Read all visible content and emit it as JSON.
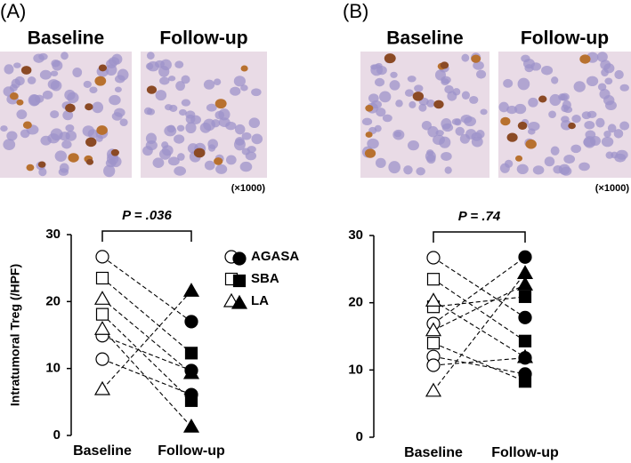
{
  "chart_data": [
    {
      "type": "paired-dot",
      "panel_label": "(A)",
      "image_labels": [
        "Baseline",
        "Follow-up"
      ],
      "magnification": "(×1000)",
      "annotation": "P = .036",
      "ylabel": "Intratumoral Treg (/HPF)",
      "categories": [
        "Baseline",
        "Follow-up"
      ],
      "ylim": [
        0,
        30
      ],
      "yticks": [
        0,
        10,
        20,
        30
      ],
      "legend": true,
      "series": [
        {
          "name": "AGASA",
          "marker": "circle",
          "baseline": [
            26.7,
            14.9,
            11.4
          ],
          "follow_up": [
            17.0,
            9.7,
            6.1
          ]
        },
        {
          "name": "SBA",
          "marker": "square",
          "baseline": [
            23.5,
            18.1
          ],
          "follow_up": [
            12.3,
            5.2
          ]
        },
        {
          "name": "LA",
          "marker": "triangle",
          "baseline": [
            20.4,
            15.9,
            6.9
          ],
          "follow_up": [
            9.3,
            1.3,
            21.6
          ]
        }
      ]
    },
    {
      "type": "paired-dot",
      "panel_label": "(B)",
      "image_labels": [
        "Baseline",
        "Follow-up"
      ],
      "magnification": "(×1000)",
      "annotation": "P = .74",
      "categories": [
        "Baseline",
        "Follow-up"
      ],
      "ylim": [
        0,
        30
      ],
      "yticks": [
        0,
        10,
        20,
        30
      ],
      "legend": false,
      "series": [
        {
          "marker": "circle",
          "baseline": [
            26.7,
            16.9,
            12.0,
            10.7
          ],
          "follow_up": [
            17.8,
            26.8,
            9.4,
            11.8
          ]
        },
        {
          "marker": "square",
          "baseline": [
            23.5,
            19.4,
            14.0
          ],
          "follow_up": [
            14.3,
            20.9,
            8.3
          ]
        },
        {
          "marker": "triangle",
          "baseline": [
            20.3,
            15.9,
            6.9
          ],
          "follow_up": [
            11.9,
            22.7,
            24.4
          ]
        }
      ]
    }
  ]
}
